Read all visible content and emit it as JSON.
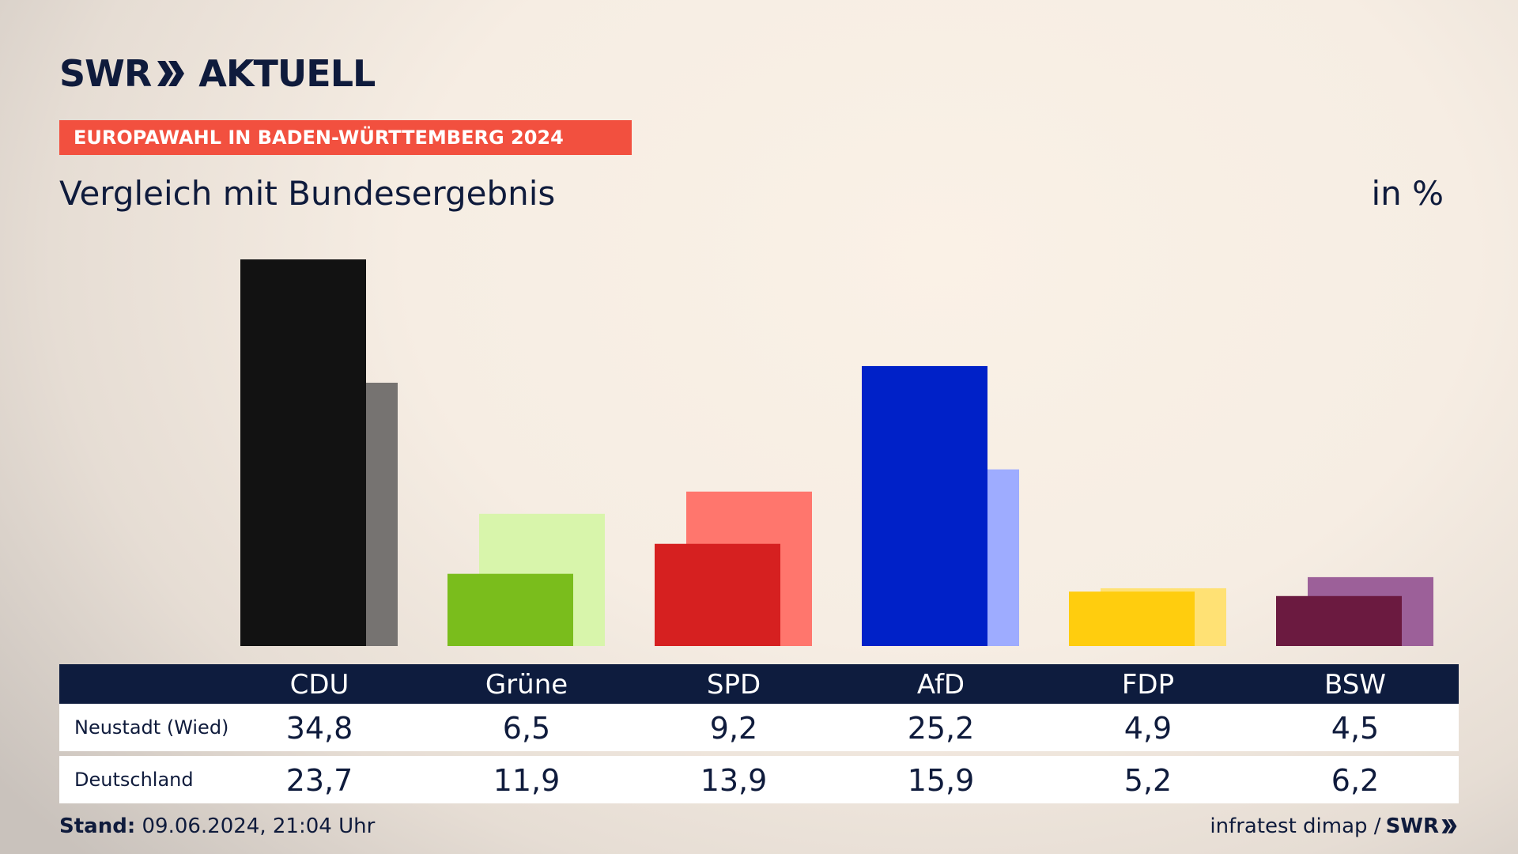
{
  "header": {
    "logo_text": "SWR",
    "logo_suffix": "AKTUELL",
    "tag": "EUROPAWAHL IN BADEN-WÜRTTEMBERG 2024",
    "subtitle": "Vergleich mit Bundesergebnis",
    "unit": "in %"
  },
  "colors": {
    "accent": "#f2503f",
    "navy": "#0e1c3e"
  },
  "chart_data": {
    "type": "bar",
    "title": "Vergleich mit Bundesergebnis",
    "unit": "in %",
    "categories": [
      "CDU",
      "Grüne",
      "SPD",
      "AfD",
      "FDP",
      "BSW"
    ],
    "series": [
      {
        "name": "Neustadt (Wied)",
        "values": [
          34.8,
          6.5,
          9.2,
          25.2,
          4.9,
          4.5
        ],
        "labels": [
          "34,8",
          "6,5",
          "9,2",
          "25,2",
          "4,9",
          "4,5"
        ],
        "colors": [
          "#121212",
          "#7abd1c",
          "#d62020",
          "#0021c8",
          "#ffcd0e",
          "#6b1a40"
        ]
      },
      {
        "name": "Deutschland",
        "values": [
          23.7,
          11.9,
          13.9,
          15.9,
          5.2,
          6.2
        ],
        "labels": [
          "23,7",
          "11,9",
          "13,9",
          "15,9",
          "5,2",
          "6,2"
        ],
        "colors": [
          "#767371",
          "#d8f5ab",
          "#ff766d",
          "#9eacff",
          "#ffe174",
          "#9c6099"
        ]
      }
    ],
    "ylim": [
      0,
      35
    ],
    "grid": false,
    "legend": "table-below"
  },
  "footer": {
    "stand_label": "Stand:",
    "stand_value": "09.06.2024, 21:04 Uhr",
    "source": "infratest dimap /",
    "source_logo": "SWR"
  }
}
